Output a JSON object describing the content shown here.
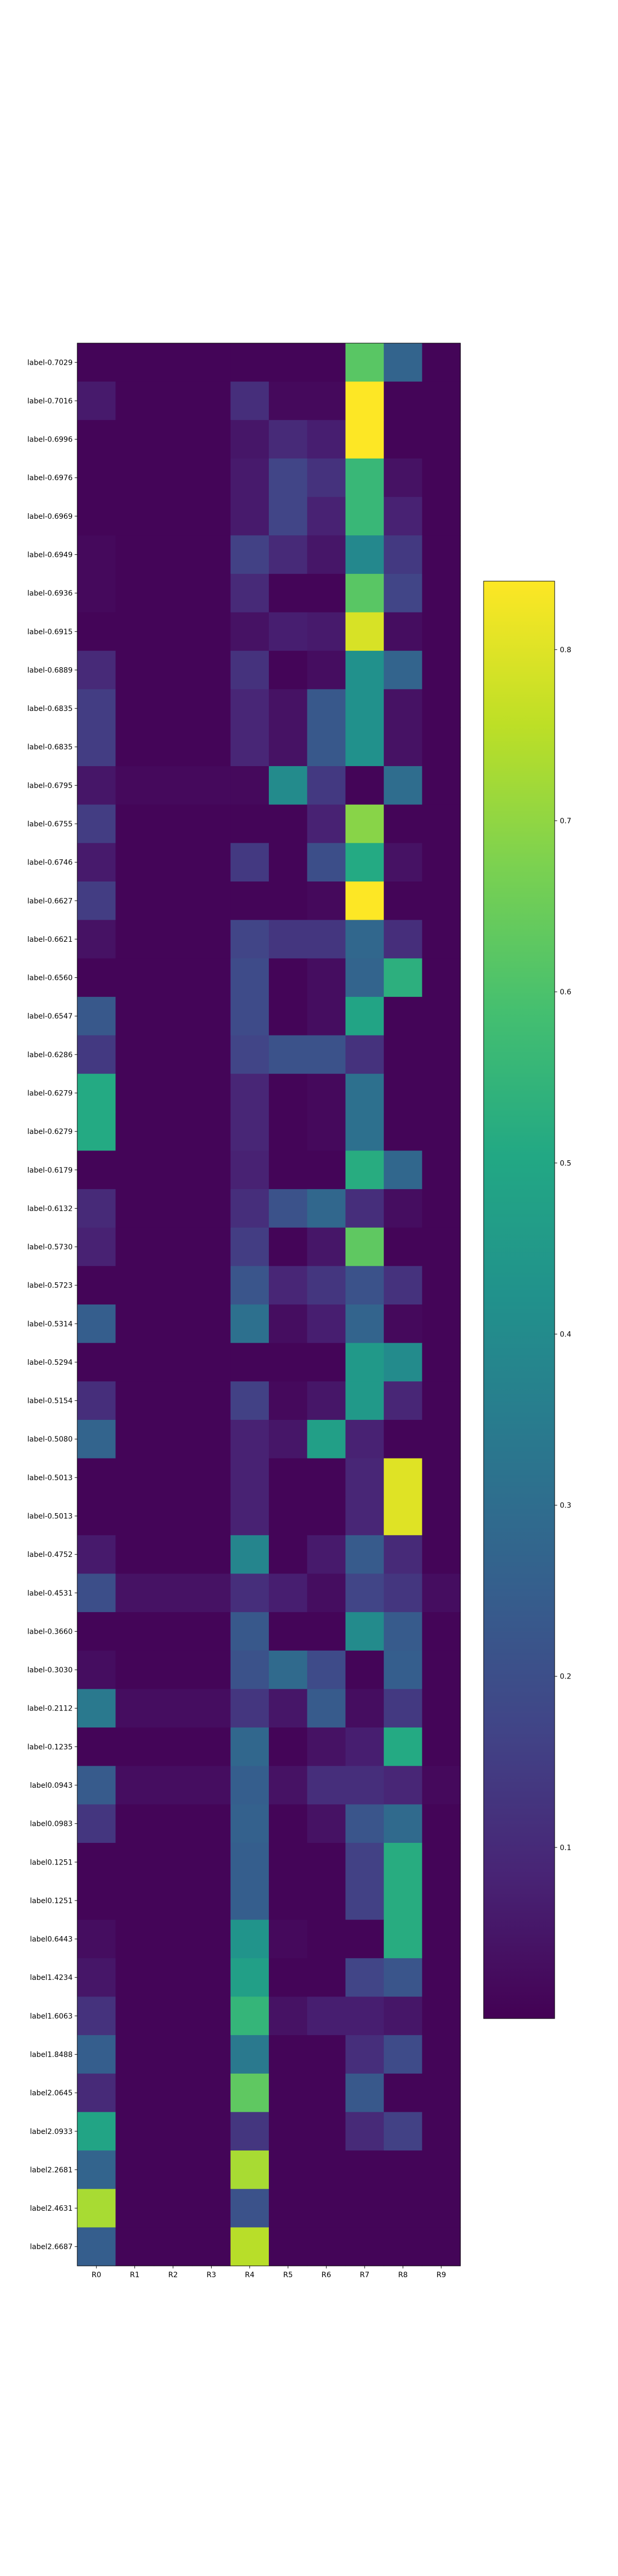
{
  "chart_data": {
    "type": "heatmap",
    "columns": [
      "R0",
      "R1",
      "R2",
      "R3",
      "R4",
      "R5",
      "R6",
      "R7",
      "R8",
      "R9"
    ],
    "rows": [
      "label-0.7029",
      "label-0.7016",
      "label-0.6996",
      "label-0.6976",
      "label-0.6969",
      "label-0.6949",
      "label-0.6936",
      "label-0.6915",
      "label-0.6889",
      "label-0.6835",
      "label-0.6835",
      "label-0.6795",
      "label-0.6755",
      "label-0.6746",
      "label-0.6627",
      "label-0.6621",
      "label-0.6560",
      "label-0.6547",
      "label-0.6286",
      "label-0.6279",
      "label-0.6279",
      "label-0.6179",
      "label-0.6132",
      "label-0.5730",
      "label-0.5723",
      "label-0.5314",
      "label-0.5294",
      "label-0.5154",
      "label-0.5080",
      "label-0.5013",
      "label-0.5013",
      "label-0.4752",
      "label-0.4531",
      "label-0.3660",
      "label-0.3030",
      "label-0.2112",
      "label-0.1235",
      "label0.0943",
      "label0.0983",
      "label0.1251",
      "label0.1251",
      "label0.6443",
      "label1.4234",
      "label1.6063",
      "label1.8488",
      "label2.0645",
      "label2.0933",
      "label2.2681",
      "label2.4631",
      "label2.6687"
    ],
    "values": [
      [
        0.01,
        0.01,
        0.01,
        0.01,
        0.01,
        0.01,
        0.01,
        0.62,
        0.27,
        0.01
      ],
      [
        0.06,
        0.01,
        0.01,
        0.01,
        0.11,
        0.02,
        0.02,
        0.84,
        0.01,
        0.01
      ],
      [
        0.01,
        0.01,
        0.01,
        0.01,
        0.05,
        0.1,
        0.07,
        0.84,
        0.01,
        0.01
      ],
      [
        0.01,
        0.01,
        0.01,
        0.01,
        0.06,
        0.17,
        0.12,
        0.56,
        0.04,
        0.01
      ],
      [
        0.01,
        0.01,
        0.01,
        0.01,
        0.06,
        0.17,
        0.08,
        0.56,
        0.08,
        0.01
      ],
      [
        0.02,
        0.01,
        0.01,
        0.01,
        0.16,
        0.1,
        0.05,
        0.39,
        0.14,
        0.01
      ],
      [
        0.02,
        0.01,
        0.01,
        0.01,
        0.1,
        0.01,
        0.01,
        0.62,
        0.17,
        0.01
      ],
      [
        0.01,
        0.01,
        0.01,
        0.01,
        0.04,
        0.07,
        0.06,
        0.79,
        0.03,
        0.01
      ],
      [
        0.1,
        0.01,
        0.01,
        0.01,
        0.12,
        0.01,
        0.03,
        0.42,
        0.27,
        0.01
      ],
      [
        0.15,
        0.01,
        0.01,
        0.01,
        0.09,
        0.04,
        0.23,
        0.42,
        0.04,
        0.01
      ],
      [
        0.15,
        0.01,
        0.01,
        0.01,
        0.09,
        0.04,
        0.23,
        0.42,
        0.04,
        0.01
      ],
      [
        0.05,
        0.02,
        0.02,
        0.02,
        0.02,
        0.4,
        0.14,
        0.01,
        0.3,
        0.01
      ],
      [
        0.15,
        0.01,
        0.01,
        0.01,
        0.01,
        0.01,
        0.08,
        0.69,
        0.01,
        0.01
      ],
      [
        0.06,
        0.01,
        0.01,
        0.01,
        0.14,
        0.01,
        0.2,
        0.51,
        0.04,
        0.01
      ],
      [
        0.15,
        0.01,
        0.01,
        0.01,
        0.01,
        0.01,
        0.02,
        0.84,
        0.01,
        0.01
      ],
      [
        0.04,
        0.01,
        0.01,
        0.01,
        0.17,
        0.13,
        0.13,
        0.28,
        0.11,
        0.01
      ],
      [
        0.01,
        0.01,
        0.01,
        0.01,
        0.19,
        0.01,
        0.03,
        0.27,
        0.53,
        0.01
      ],
      [
        0.23,
        0.01,
        0.01,
        0.01,
        0.19,
        0.01,
        0.03,
        0.49,
        0.01,
        0.01
      ],
      [
        0.14,
        0.01,
        0.01,
        0.01,
        0.17,
        0.21,
        0.21,
        0.12,
        0.01,
        0.01
      ],
      [
        0.51,
        0.01,
        0.01,
        0.01,
        0.09,
        0.01,
        0.02,
        0.31,
        0.01,
        0.01
      ],
      [
        0.51,
        0.01,
        0.01,
        0.01,
        0.09,
        0.01,
        0.02,
        0.31,
        0.01,
        0.01
      ],
      [
        0.01,
        0.01,
        0.01,
        0.01,
        0.08,
        0.01,
        0.01,
        0.52,
        0.28,
        0.01
      ],
      [
        0.1,
        0.01,
        0.01,
        0.01,
        0.11,
        0.21,
        0.28,
        0.11,
        0.03,
        0.01
      ],
      [
        0.08,
        0.01,
        0.01,
        0.01,
        0.15,
        0.01,
        0.05,
        0.63,
        0.01,
        0.01
      ],
      [
        0.01,
        0.01,
        0.01,
        0.01,
        0.22,
        0.09,
        0.13,
        0.21,
        0.12,
        0.01
      ],
      [
        0.25,
        0.01,
        0.01,
        0.01,
        0.31,
        0.03,
        0.07,
        0.27,
        0.02,
        0.01
      ],
      [
        0.01,
        0.01,
        0.01,
        0.01,
        0.01,
        0.01,
        0.01,
        0.45,
        0.4,
        0.01
      ],
      [
        0.11,
        0.01,
        0.01,
        0.01,
        0.16,
        0.02,
        0.05,
        0.45,
        0.09,
        0.01
      ],
      [
        0.27,
        0.01,
        0.01,
        0.01,
        0.08,
        0.05,
        0.47,
        0.08,
        0.01,
        0.01
      ],
      [
        0.01,
        0.01,
        0.01,
        0.01,
        0.08,
        0.01,
        0.01,
        0.09,
        0.8,
        0.01
      ],
      [
        0.01,
        0.01,
        0.01,
        0.01,
        0.08,
        0.01,
        0.01,
        0.09,
        0.8,
        0.01
      ],
      [
        0.06,
        0.01,
        0.01,
        0.01,
        0.38,
        0.01,
        0.06,
        0.24,
        0.1,
        0.01
      ],
      [
        0.2,
        0.04,
        0.04,
        0.04,
        0.11,
        0.07,
        0.03,
        0.17,
        0.13,
        0.03
      ],
      [
        0.01,
        0.01,
        0.01,
        0.01,
        0.23,
        0.01,
        0.01,
        0.4,
        0.24,
        0.01
      ],
      [
        0.03,
        0.01,
        0.01,
        0.01,
        0.21,
        0.29,
        0.19,
        0.01,
        0.25,
        0.01
      ],
      [
        0.34,
        0.03,
        0.03,
        0.03,
        0.13,
        0.05,
        0.24,
        0.03,
        0.14,
        0.01
      ],
      [
        0.01,
        0.01,
        0.01,
        0.01,
        0.28,
        0.01,
        0.04,
        0.07,
        0.51,
        0.01
      ],
      [
        0.24,
        0.03,
        0.03,
        0.03,
        0.25,
        0.04,
        0.11,
        0.11,
        0.09,
        0.02
      ],
      [
        0.13,
        0.01,
        0.01,
        0.01,
        0.26,
        0.01,
        0.04,
        0.22,
        0.29,
        0.01
      ],
      [
        0.01,
        0.01,
        0.01,
        0.01,
        0.25,
        0.01,
        0.01,
        0.16,
        0.52,
        0.01
      ],
      [
        0.01,
        0.01,
        0.01,
        0.01,
        0.25,
        0.01,
        0.01,
        0.16,
        0.52,
        0.01
      ],
      [
        0.03,
        0.01,
        0.01,
        0.01,
        0.43,
        0.02,
        0.01,
        0.01,
        0.52,
        0.01
      ],
      [
        0.05,
        0.01,
        0.01,
        0.01,
        0.47,
        0.01,
        0.01,
        0.17,
        0.22,
        0.01
      ],
      [
        0.12,
        0.01,
        0.01,
        0.01,
        0.55,
        0.04,
        0.07,
        0.07,
        0.05,
        0.01
      ],
      [
        0.25,
        0.01,
        0.01,
        0.01,
        0.34,
        0.01,
        0.01,
        0.11,
        0.19,
        0.01
      ],
      [
        0.1,
        0.01,
        0.01,
        0.01,
        0.63,
        0.01,
        0.01,
        0.23,
        0.01,
        0.01
      ],
      [
        0.49,
        0.01,
        0.01,
        0.01,
        0.13,
        0.01,
        0.01,
        0.1,
        0.16,
        0.01
      ],
      [
        0.27,
        0.01,
        0.01,
        0.01,
        0.73,
        0.01,
        0.01,
        0.01,
        0.01,
        0.01
      ],
      [
        0.73,
        0.01,
        0.01,
        0.01,
        0.21,
        0.01,
        0.01,
        0.01,
        0.01,
        0.01
      ],
      [
        0.25,
        0.01,
        0.01,
        0.01,
        0.75,
        0.01,
        0.01,
        0.01,
        0.01,
        0.01
      ]
    ],
    "colorscale": "viridis",
    "vmin": 0.0,
    "vmax": 0.84,
    "colorbar_ticks": [
      0.1,
      0.2,
      0.3,
      0.4,
      0.5,
      0.6,
      0.7,
      0.8
    ],
    "title": "",
    "xlabel": "",
    "ylabel": ""
  }
}
